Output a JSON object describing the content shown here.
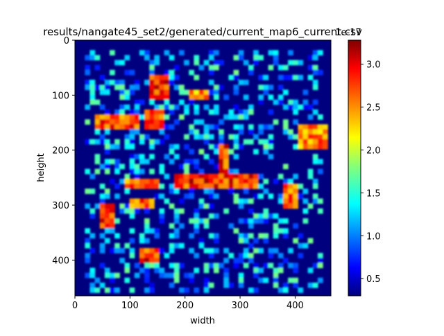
{
  "chart_data": {
    "type": "heatmap",
    "title": "results/nangate45_set2/generated/current_map6_current.csv",
    "xlabel": "width",
    "ylabel": "height",
    "colormap": "jet",
    "xlim": [
      0,
      465
    ],
    "ylim": [
      465,
      0
    ],
    "x_ticks": [
      0,
      100,
      200,
      300,
      400
    ],
    "y_ticks": [
      0,
      100,
      200,
      300,
      400
    ],
    "colorbar": {
      "exponent_label": "1e-17",
      "min": 0.3,
      "max": 3.28,
      "ticks": [
        0.5,
        1.0,
        1.5,
        2.0,
        2.5,
        3.0
      ],
      "tick_labels": [
        "0.5",
        "1.0",
        "1.5",
        "2.0",
        "2.5",
        "3.0"
      ]
    },
    "hotspots": [
      {
        "x_range": [
          135,
          165
        ],
        "y_range": [
          60,
          100
        ],
        "level": 3.2
      },
      {
        "x_range": [
          200,
          240
        ],
        "y_range": [
          85,
          105
        ],
        "level": 2.8
      },
      {
        "x_range": [
          30,
          110
        ],
        "y_range": [
          135,
          155
        ],
        "level": 3.1
      },
      {
        "x_range": [
          120,
          160
        ],
        "y_range": [
          125,
          155
        ],
        "level": 3.2
      },
      {
        "x_range": [
          255,
          270
        ],
        "y_range": [
          185,
          235
        ],
        "level": 3.2
      },
      {
        "x_range": [
          180,
          330
        ],
        "y_range": [
          240,
          265
        ],
        "level": 3.2
      },
      {
        "x_range": [
          40,
          70
        ],
        "y_range": [
          290,
          340
        ],
        "level": 3.2
      },
      {
        "x_range": [
          115,
          150
        ],
        "y_range": [
          370,
          400
        ],
        "level": 3.2
      },
      {
        "x_range": [
          375,
          400
        ],
        "y_range": [
          255,
          300
        ],
        "level": 3.0
      },
      {
        "x_range": [
          400,
          450
        ],
        "y_range": [
          150,
          190
        ],
        "level": 2.9
      },
      {
        "x_range": [
          90,
          145
        ],
        "y_range": [
          245,
          265
        ],
        "level": 3.0
      },
      {
        "x_range": [
          95,
          140
        ],
        "y_range": [
          285,
          300
        ],
        "level": 3.0
      }
    ]
  }
}
